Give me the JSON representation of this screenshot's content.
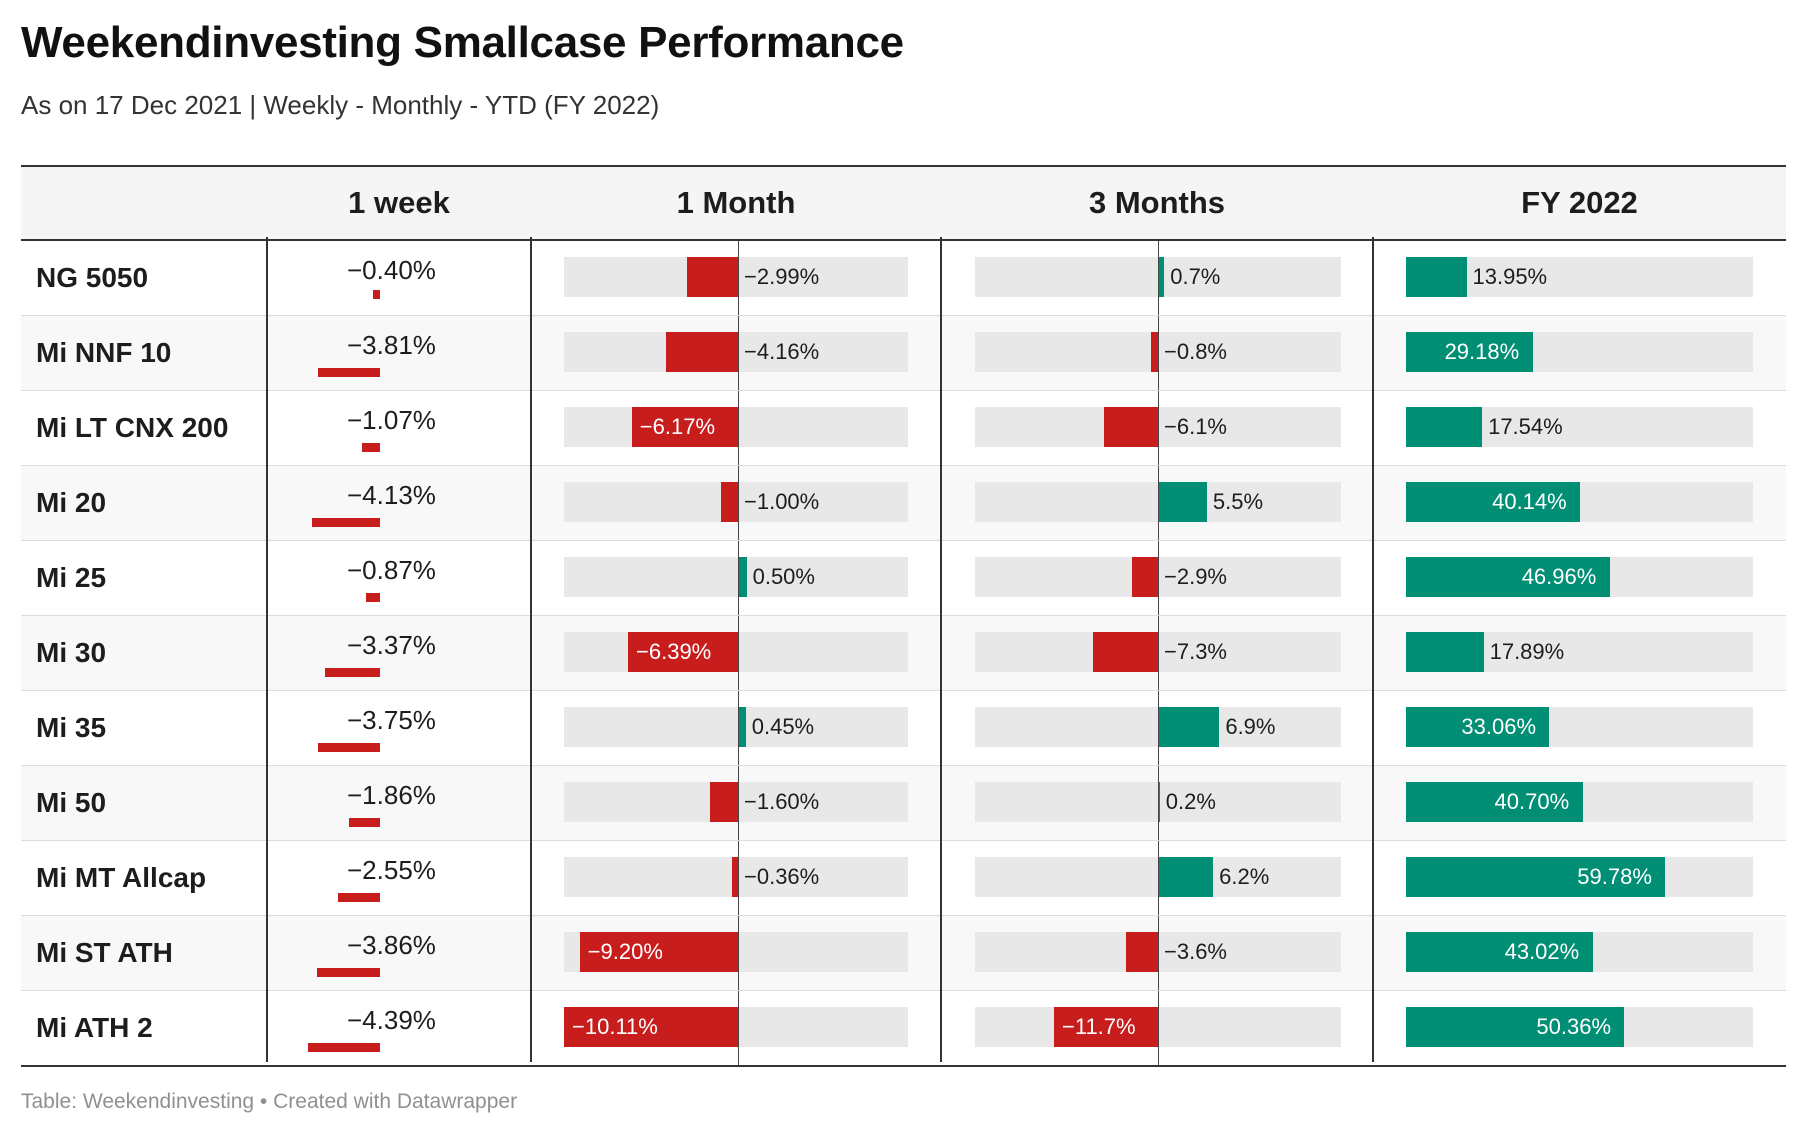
{
  "title": "Weekendinvesting Smallcase Performance",
  "subtitle": "As on 17 Dec 2021 | Weekly - Monthly - YTD (FY 2022)",
  "footer": "Table: Weekendinvesting • Created with Datawrapper",
  "colors": {
    "negative": "#c71e1d",
    "positive": "#008f75",
    "track": "#e8e8e8"
  },
  "chart_data": {
    "type": "table",
    "columns": [
      "",
      "1 week",
      "1 Month",
      "3 Months",
      "FY 2022"
    ],
    "rows": [
      {
        "name": "NG 5050",
        "week": -0.4,
        "week_label": "−0.40%",
        "month": -2.99,
        "month_label": "−2.99%",
        "m3": 0.7,
        "m3_label": "0.7%",
        "fy": 13.95,
        "fy_label": "13.95%"
      },
      {
        "name": "Mi NNF 10",
        "week": -3.81,
        "week_label": "−3.81%",
        "month": -4.16,
        "month_label": "−4.16%",
        "m3": -0.8,
        "m3_label": "−0.8%",
        "fy": 29.18,
        "fy_label": "29.18%"
      },
      {
        "name": "Mi LT CNX 200",
        "week": -1.07,
        "week_label": "−1.07%",
        "month": -6.17,
        "month_label": "−6.17%",
        "m3": -6.1,
        "m3_label": "−6.1%",
        "fy": 17.54,
        "fy_label": "17.54%"
      },
      {
        "name": "Mi 20",
        "week": -4.13,
        "week_label": "−4.13%",
        "month": -1.0,
        "month_label": "−1.00%",
        "m3": 5.5,
        "m3_label": "5.5%",
        "fy": 40.14,
        "fy_label": "40.14%"
      },
      {
        "name": "Mi 25",
        "week": -0.87,
        "week_label": "−0.87%",
        "month": 0.5,
        "month_label": "0.50%",
        "m3": -2.9,
        "m3_label": "−2.9%",
        "fy": 46.96,
        "fy_label": "46.96%"
      },
      {
        "name": "Mi 30",
        "week": -3.37,
        "week_label": "−3.37%",
        "month": -6.39,
        "month_label": "−6.39%",
        "m3": -7.3,
        "m3_label": "−7.3%",
        "fy": 17.89,
        "fy_label": "17.89%"
      },
      {
        "name": "Mi 35",
        "week": -3.75,
        "week_label": "−3.75%",
        "month": 0.45,
        "month_label": "0.45%",
        "m3": 6.9,
        "m3_label": "6.9%",
        "fy": 33.06,
        "fy_label": "33.06%"
      },
      {
        "name": "Mi 50",
        "week": -1.86,
        "week_label": "−1.86%",
        "month": -1.6,
        "month_label": "−1.60%",
        "m3": 0.2,
        "m3_label": "0.2%",
        "fy": 40.7,
        "fy_label": "40.70%"
      },
      {
        "name": "Mi MT Allcap",
        "week": -2.55,
        "week_label": "−2.55%",
        "month": -0.36,
        "month_label": "−0.36%",
        "m3": 6.2,
        "m3_label": "6.2%",
        "fy": 59.78,
        "fy_label": "59.78%"
      },
      {
        "name": "Mi ST ATH",
        "week": -3.86,
        "week_label": "−3.86%",
        "month": -9.2,
        "month_label": "−9.20%",
        "m3": -3.6,
        "m3_label": "−3.6%",
        "fy": 43.02,
        "fy_label": "43.02%"
      },
      {
        "name": "Mi ATH 2",
        "week": -4.39,
        "week_label": "−4.39%",
        "month": -10.11,
        "month_label": "−10.11%",
        "m3": -11.7,
        "m3_label": "−11.7%",
        "fy": 50.36,
        "fy_label": "50.36%"
      }
    ]
  }
}
